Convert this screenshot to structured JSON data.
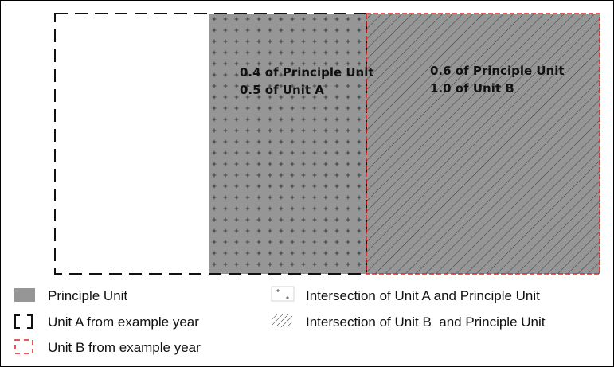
{
  "diagram": {
    "region_labels": {
      "unit_a_intersection": {
        "line1": "0.4 of Principle Unit",
        "line2": "0.5 of Unit A"
      },
      "unit_b_intersection": {
        "line1": "0.6 of Principle Unit",
        "line2": "1.0 of Unit B"
      }
    },
    "fractions": {
      "unit_a_of_principle": 0.4,
      "unit_a_share": 0.5,
      "unit_b_of_principle": 0.6,
      "unit_b_share": 1.0
    }
  },
  "legend": {
    "principle_unit": "Principle Unit",
    "unit_a": "Unit A from example year",
    "unit_b": "Unit B from example year",
    "intersection_a": "Intersection of Unit A and Principle Unit",
    "intersection_b": "Intersection of Unit B  and Principle Unit"
  },
  "colors": {
    "principle_fill": "#969696",
    "unit_a_border": "#111111",
    "unit_b_border": "#e0201e",
    "hatch": "#3a3a3a",
    "text": "#111111"
  }
}
